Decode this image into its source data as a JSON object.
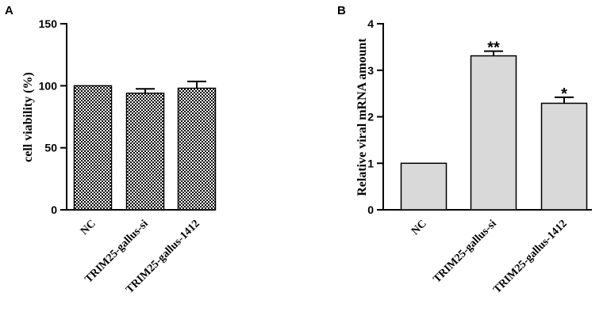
{
  "chart_data": [
    {
      "panel": "A",
      "type": "bar",
      "title": "",
      "xlabel": "",
      "ylabel": "cell viability (%)",
      "ylim": [
        0,
        150
      ],
      "yticks": [
        0,
        50,
        100,
        150
      ],
      "categories": [
        "NC",
        "TRIM25-gallus-si",
        "TRIM25-gallus-1412"
      ],
      "values": [
        100,
        94,
        98
      ],
      "errors": [
        0,
        3.5,
        5.5
      ],
      "significance": [
        "",
        "",
        ""
      ],
      "bar_fill": "checkered",
      "colors": {
        "bar_fill": "#ffffff",
        "pattern": "#000000"
      }
    },
    {
      "panel": "B",
      "type": "bar",
      "title": "",
      "xlabel": "",
      "ylabel": "Relative viral mRNA amount",
      "ylim": [
        0,
        4
      ],
      "yticks": [
        0,
        1,
        2,
        3,
        4
      ],
      "categories": [
        "NC",
        "TRIM25-gallus-si",
        "TRIM25-gallus-1412"
      ],
      "values": [
        1.0,
        3.31,
        2.29
      ],
      "errors": [
        0,
        0.1,
        0.13
      ],
      "significance": [
        "",
        "**",
        "*"
      ],
      "bar_fill": "solid",
      "colors": {
        "bar_fill": "#d9d9d9",
        "pattern": "#000000"
      }
    }
  ]
}
